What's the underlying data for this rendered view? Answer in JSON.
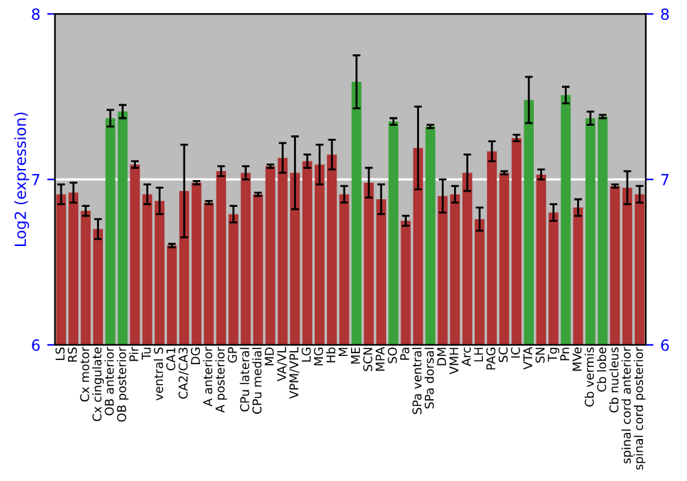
{
  "chart_data": {
    "type": "bar",
    "ylabel": "Log2 (expression)",
    "categories": [
      "LS",
      "RS",
      "Cx motor",
      "Cx cingulate",
      "OB anterior",
      "OB posterior",
      "Pir",
      "Tu",
      "ventral S",
      "CA1",
      "CA2/CA3",
      "DG",
      "A anterior",
      "A posterior",
      "GP",
      "CPu lateral",
      "CPu medial",
      "MD",
      "VA/VL",
      "VPM/VPL",
      "LG",
      "MG",
      "Hb",
      "M",
      "ME",
      "SCN",
      "MPA",
      "SO",
      "Pa",
      "SPa ventral",
      "SPa dorsal",
      "DM",
      "VMH",
      "Arc",
      "LH",
      "PAG",
      "SC",
      "IC",
      "VTA",
      "SN",
      "Tg",
      "Pn",
      "MVe",
      "Cb vermis",
      "Cb lobe",
      "Cb nucleus",
      "spinal cord anterior",
      "spinal cord posterior"
    ],
    "values": [
      6.91,
      6.92,
      6.81,
      6.7,
      7.37,
      7.41,
      7.09,
      6.91,
      6.87,
      6.6,
      6.93,
      6.98,
      6.86,
      7.05,
      6.79,
      7.04,
      6.91,
      7.08,
      7.13,
      7.04,
      7.11,
      7.09,
      7.15,
      6.91,
      7.59,
      6.98,
      6.88,
      7.35,
      6.75,
      7.19,
      7.32,
      6.9,
      6.91,
      7.04,
      6.76,
      7.17,
      7.04,
      7.25,
      7.48,
      7.03,
      6.8,
      7.51,
      6.83,
      7.37,
      7.38,
      6.96,
      6.95,
      6.91
    ],
    "errors": [
      0.06,
      0.06,
      0.03,
      0.06,
      0.05,
      0.04,
      0.02,
      0.06,
      0.08,
      0.01,
      0.28,
      0.01,
      0.01,
      0.03,
      0.05,
      0.04,
      0.01,
      0.01,
      0.09,
      0.22,
      0.04,
      0.12,
      0.09,
      0.05,
      0.16,
      0.09,
      0.09,
      0.02,
      0.03,
      0.25,
      0.01,
      0.1,
      0.05,
      0.11,
      0.07,
      0.06,
      0.01,
      0.02,
      0.14,
      0.03,
      0.05,
      0.05,
      0.05,
      0.04,
      0.01,
      0.01,
      0.1,
      0.05
    ],
    "colors": [
      "#b03434",
      "#b03434",
      "#b03434",
      "#b03434",
      "#3aa23a",
      "#3aa23a",
      "#b03434",
      "#b03434",
      "#b03434",
      "#b03434",
      "#b03434",
      "#b03434",
      "#b03434",
      "#b03434",
      "#b03434",
      "#b03434",
      "#b03434",
      "#b03434",
      "#b03434",
      "#b03434",
      "#b03434",
      "#b03434",
      "#b03434",
      "#b03434",
      "#3aa23a",
      "#b03434",
      "#b03434",
      "#3aa23a",
      "#b03434",
      "#b03434",
      "#3aa23a",
      "#b03434",
      "#b03434",
      "#b03434",
      "#b03434",
      "#b03434",
      "#b03434",
      "#b03434",
      "#3aa23a",
      "#b03434",
      "#b03434",
      "#3aa23a",
      "#b03434",
      "#3aa23a",
      "#3aa23a",
      "#b03434",
      "#b03434",
      "#b03434"
    ],
    "ylim": [
      6,
      8
    ],
    "yticks": [
      6,
      7,
      8
    ],
    "y2lim": [
      6,
      8
    ],
    "y2ticks": [
      6,
      7,
      8
    ],
    "grid": "y"
  }
}
